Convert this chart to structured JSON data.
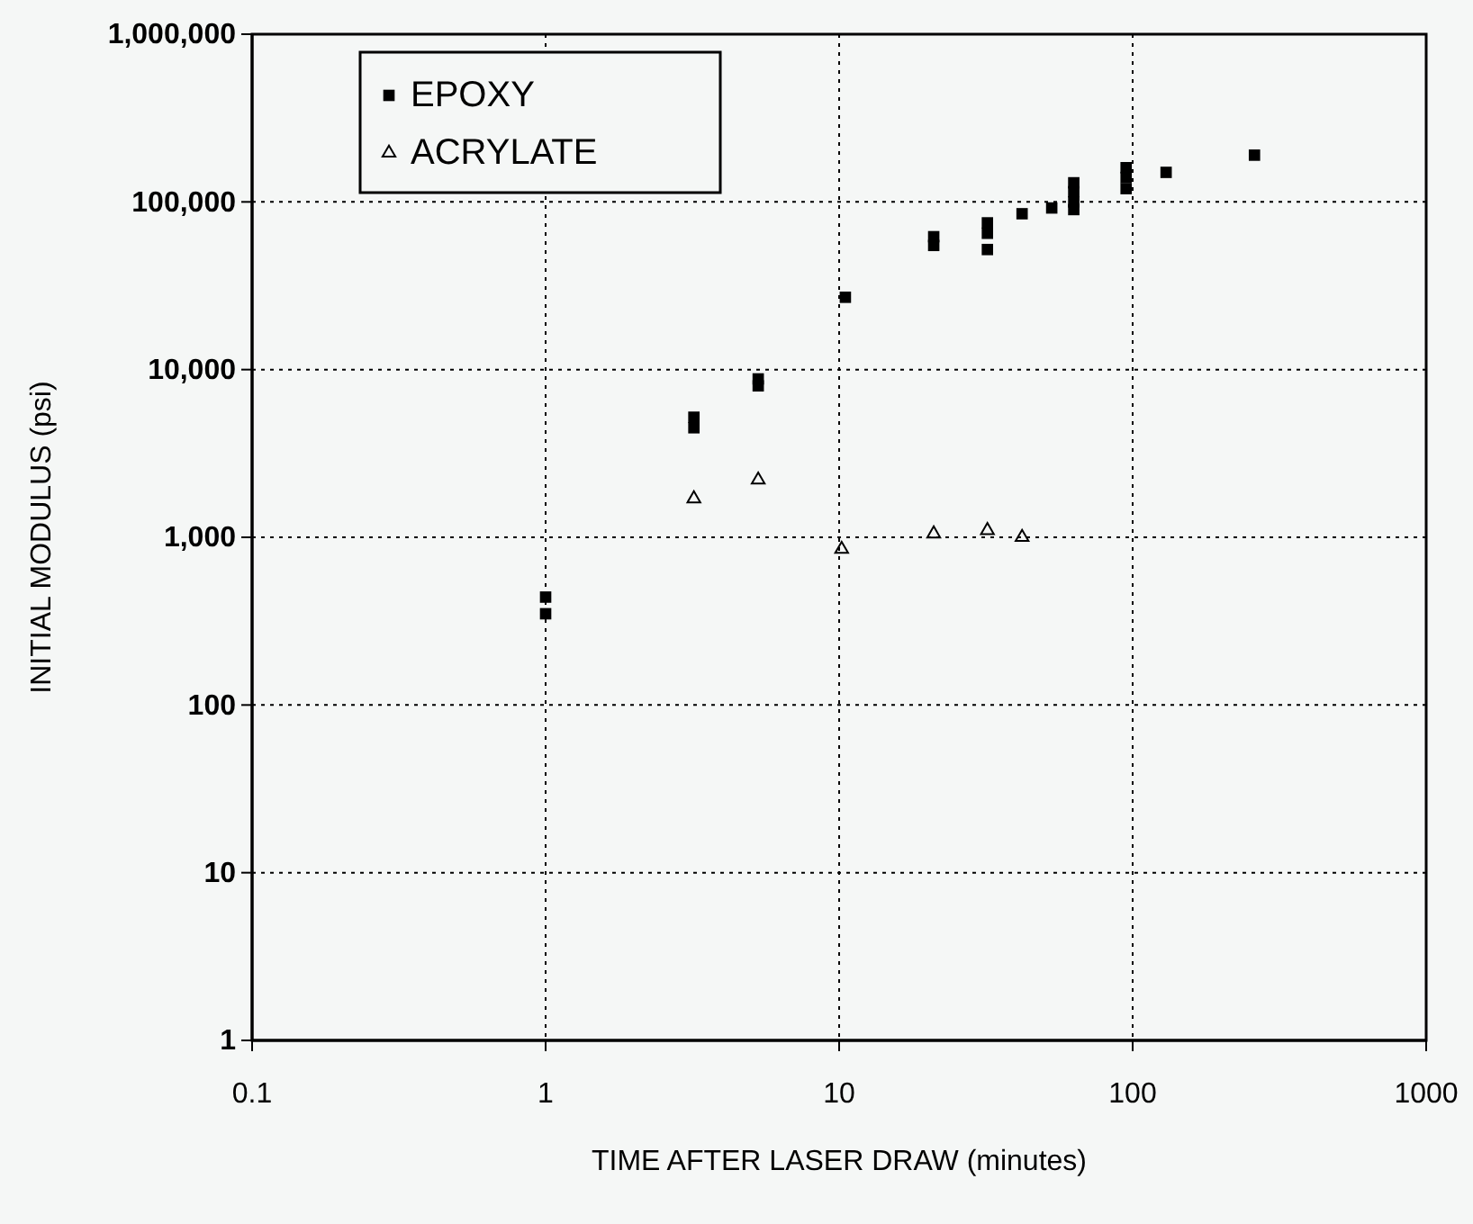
{
  "chart_data": {
    "type": "scatter",
    "xlabel": "TIME AFTER LASER DRAW  (minutes)",
    "ylabel": "INITIAL MODULUS (psi)",
    "log": "xy",
    "grid": true,
    "legend": "top left",
    "xlim": [
      0.1,
      1000
    ],
    "xticks": [
      0.1,
      1,
      10,
      100,
      1000
    ],
    "ylim": [
      1,
      1000000
    ],
    "yticks": [
      {
        "value": 1,
        "label": "1"
      },
      {
        "value": 10,
        "label": "10"
      },
      {
        "value": 100,
        "label": "100"
      },
      {
        "value": 1000,
        "label": "1,000"
      },
      {
        "value": 10000,
        "label": "10,000"
      },
      {
        "value": 100000,
        "label": "100,000"
      },
      {
        "value": 1000000,
        "label": "1,000,000"
      }
    ],
    "series": [
      {
        "name": "EPOXY",
        "color": "#000000",
        "marker": "square",
        "x": [
          1,
          1,
          3.2,
          3.2,
          5.3,
          5.3,
          10.5,
          21,
          21,
          32,
          32,
          32,
          42,
          53,
          63,
          63,
          63,
          63,
          95,
          95,
          95,
          130,
          260
        ],
        "values": [
          440,
          350,
          4500,
          5200,
          8000,
          8800,
          27000,
          55000,
          62000,
          52000,
          65000,
          75000,
          85000,
          92000,
          90000,
          100000,
          115000,
          130000,
          120000,
          140000,
          160000,
          150000,
          190000
        ]
      },
      {
        "name": "ACRYLATE",
        "color": "#000000",
        "marker": "triangle",
        "x": [
          3.2,
          5.3,
          10.2,
          21,
          32,
          42
        ],
        "values": [
          1700,
          2200,
          850,
          1050,
          1100,
          1000
        ]
      }
    ]
  }
}
